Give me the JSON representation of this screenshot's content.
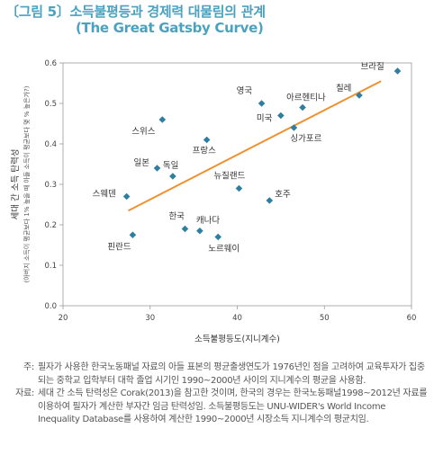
{
  "figure": {
    "title_line1": "〔그림 5〕소득불평등과 경제력 대물림의 관계",
    "title_line2": "(The Great Gatsby Curve)"
  },
  "chart_data": {
    "type": "scatter",
    "ylabel_line1": "세대 간 소득 탄력성",
    "ylabel_line2": "(아버지 소득이 평균보다 1% 높을 때 아들 소득이 평균보다 몇 % 높은가?)",
    "xlabel": "소득불평등도(지니계수)",
    "xlim": [
      20,
      60
    ],
    "ylim": [
      0.0,
      0.6
    ],
    "xticks": [
      "20",
      "30",
      "40",
      "50",
      "60"
    ],
    "yticks": [
      "0.0",
      "0.1",
      "0.2",
      "0.3",
      "0.4",
      "0.5",
      "0.6"
    ],
    "grid": false,
    "marker_color": "#2e7ea1",
    "trend_color": "#f0912f",
    "trendline": [
      [
        27.5,
        0.235
      ],
      [
        56.5,
        0.555
      ]
    ],
    "points": [
      {
        "label": "브라질",
        "x": 58.4,
        "y": 0.58
      },
      {
        "label": "칠레",
        "x": 54.0,
        "y": 0.52
      },
      {
        "label": "영국",
        "x": 42.8,
        "y": 0.5
      },
      {
        "label": "아르헨티나",
        "x": 47.5,
        "y": 0.49
      },
      {
        "label": "미국",
        "x": 45.0,
        "y": 0.47
      },
      {
        "label": "싱가포르",
        "x": 46.5,
        "y": 0.44
      },
      {
        "label": "스위스",
        "x": 31.4,
        "y": 0.46
      },
      {
        "label": "프랑스",
        "x": 36.5,
        "y": 0.41
      },
      {
        "label": "일본",
        "x": 30.8,
        "y": 0.34
      },
      {
        "label": "독일",
        "x": 32.6,
        "y": 0.32
      },
      {
        "label": "뉴질랜드",
        "x": 40.2,
        "y": 0.29
      },
      {
        "label": "스웨덴",
        "x": 27.3,
        "y": 0.27
      },
      {
        "label": "호주",
        "x": 43.7,
        "y": 0.26
      },
      {
        "label": "한국",
        "x": 34.0,
        "y": 0.19
      },
      {
        "label": "캐나다",
        "x": 35.7,
        "y": 0.185
      },
      {
        "label": "핀란드",
        "x": 28.0,
        "y": 0.175
      },
      {
        "label": "노르웨이",
        "x": 37.8,
        "y": 0.17
      }
    ]
  },
  "notes": [
    {
      "label": "주:",
      "text": "필자가 사용한 한국노동패널 자료의 아들 표본의 평균출생연도가 1976년인 점을 고려하여 교육투자가 집중되는 중학교 입학부터 대학 졸업 시기인 1990~2000년 사이의 지니계수의 평균을 사용함."
    },
    {
      "label": "자료:",
      "text": "세대 간 소득 탄력성은 Corak(2013)을 참고한 것이며, 한국의 경우는 한국노동패널1998~2012년 자료를 이용하여 필자가 계산한 부자간 임금 탄력성임. 소득불평등도는 UNU-WIDER's World Income Inequality Database를 사용하여 계산한 1990~2000년 시장소득 지니계수의 평균치임."
    }
  ]
}
